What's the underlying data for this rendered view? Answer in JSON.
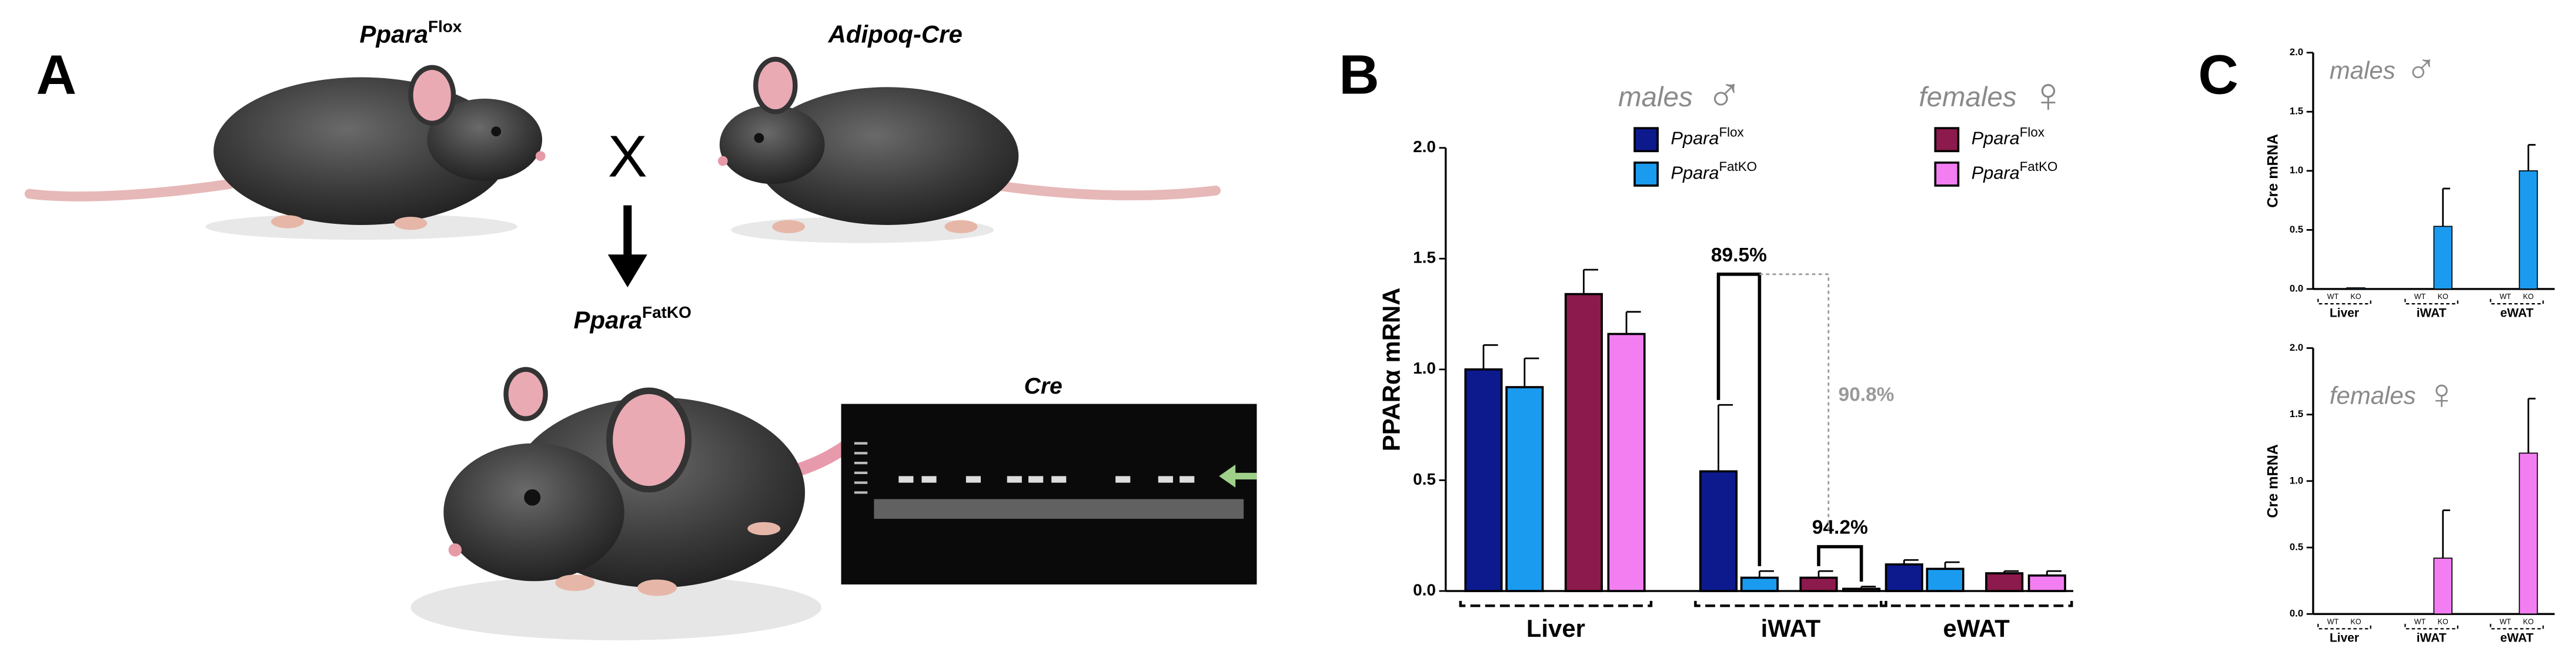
{
  "panel_a": {
    "label": "A",
    "mice": [
      {
        "name": "Ppara",
        "superscript": "Flox"
      },
      {
        "name": "Adipoq-Cre"
      },
      {
        "name": "Ppara",
        "superscript": "FatKO"
      }
    ],
    "cross": "X",
    "gel_title": "Cre"
  },
  "chart_data": [
    {
      "type": "bar",
      "panel_label": "B",
      "ylabel": "PPARα mRNA",
      "categories": [
        "Liver",
        "iWAT",
        "eWAT"
      ],
      "ylim": [
        0,
        2
      ],
      "yticks": [
        {
          "value": 0,
          "label": "0.0"
        },
        {
          "value": 0.5,
          "label": "0.5"
        },
        {
          "value": 1,
          "label": "1.0"
        },
        {
          "value": 1.5,
          "label": "1.5"
        },
        {
          "value": 2,
          "label": "2.0"
        }
      ],
      "groups": [
        {
          "title": "males",
          "symbol": "♂",
          "series": [
            {
              "name": "Ppara",
              "superscript": "Flox",
              "color": "#0d1a8e",
              "values": [
                1.0,
                0.54,
                0.12
              ],
              "errors": [
                0.11,
                0.3,
                0.02
              ]
            },
            {
              "name": "Ppara",
              "superscript": "FatKO",
              "color": "#1a9bef",
              "values": [
                0.92,
                0.06,
                0.1
              ],
              "errors": [
                0.13,
                0.03,
                0.03
              ]
            }
          ]
        },
        {
          "title": "females",
          "symbol": "♀",
          "series": [
            {
              "name": "Ppara",
              "superscript": "Flox",
              "color": "#8c1a4c",
              "values": [
                1.34,
                0.06,
                0.08
              ],
              "errors": [
                0.11,
                0.03,
                0.01
              ]
            },
            {
              "name": "Ppara",
              "superscript": "FatKO",
              "color": "#f27ef2",
              "values": [
                1.16,
                0.01,
                0.07
              ],
              "errors": [
                0.1,
                0.01,
                0.02
              ]
            }
          ]
        }
      ],
      "annotations": [
        {
          "text": "89.5%"
        },
        {
          "text": "94.2%"
        },
        {
          "text": "90.8%",
          "color": "#9a9a9a"
        }
      ]
    },
    {
      "type": "bar",
      "panel_label": "C",
      "title": "males",
      "symbol": "♂",
      "ylabel": "Cre mRNA",
      "categories": [
        "Liver",
        "iWAT",
        "eWAT"
      ],
      "ylim": [
        0,
        2
      ],
      "yticks": [
        {
          "value": 0,
          "label": "0.0"
        },
        {
          "value": 0.5,
          "label": "0.5"
        },
        {
          "value": 1,
          "label": "1.0"
        },
        {
          "value": 1.5,
          "label": "1.5"
        },
        {
          "value": 2,
          "label": "2.0"
        }
      ],
      "series": [
        {
          "name": "WT",
          "color": "#0d1a8e",
          "values": [
            0,
            0,
            0
          ],
          "errors": [
            0,
            0,
            0
          ]
        },
        {
          "name": "KO",
          "color": "#1a9bef",
          "values": [
            0.01,
            0.53,
            1.0
          ],
          "errors": [
            0,
            0.32,
            0.22
          ]
        }
      ]
    },
    {
      "type": "bar",
      "title": "females",
      "symbol": "♀",
      "ylabel": "Cre mRNA",
      "categories": [
        "Liver",
        "iWAT",
        "eWAT"
      ],
      "ylim": [
        0,
        2
      ],
      "yticks": [
        {
          "value": 0,
          "label": "0.0"
        },
        {
          "value": 0.5,
          "label": "0.5"
        },
        {
          "value": 1,
          "label": "1.0"
        },
        {
          "value": 1.5,
          "label": "1.5"
        },
        {
          "value": 2,
          "label": "2.0"
        }
      ],
      "series": [
        {
          "name": "WT",
          "color": "#8c1a4c",
          "values": [
            0,
            0,
            0
          ],
          "errors": [
            0,
            0,
            0
          ]
        },
        {
          "name": "KO",
          "color": "#f27ef2",
          "values": [
            0,
            0.42,
            1.21
          ],
          "errors": [
            0,
            0.36,
            0.41
          ]
        }
      ]
    }
  ]
}
